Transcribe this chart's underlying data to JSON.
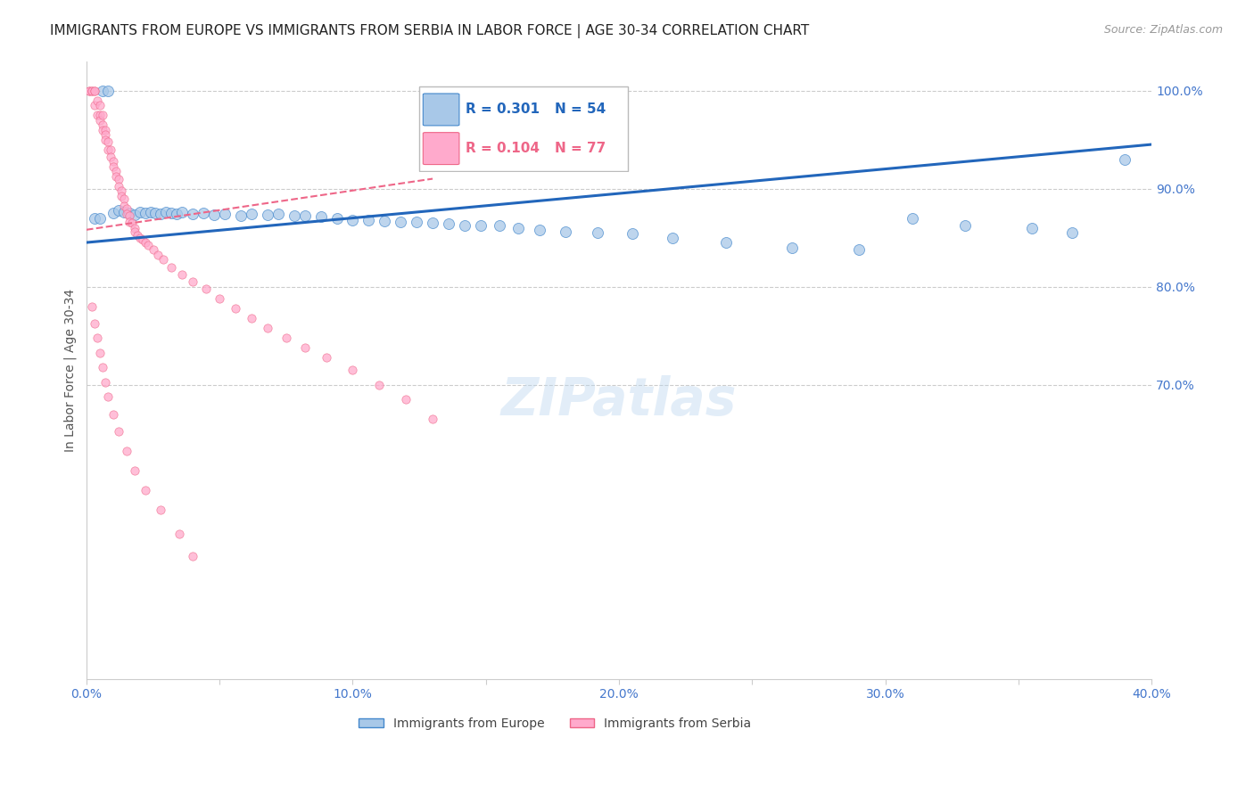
{
  "title": "IMMIGRANTS FROM EUROPE VS IMMIGRANTS FROM SERBIA IN LABOR FORCE | AGE 30-34 CORRELATION CHART",
  "source": "Source: ZipAtlas.com",
  "ylabel": "In Labor Force | Age 30-34",
  "xlim": [
    0.0,
    0.4
  ],
  "ylim": [
    0.4,
    1.03
  ],
  "xtick_vals": [
    0.0,
    0.05,
    0.1,
    0.15,
    0.2,
    0.25,
    0.3,
    0.35,
    0.4
  ],
  "xtick_labels": [
    "0.0%",
    "",
    "10.0%",
    "",
    "20.0%",
    "",
    "30.0%",
    "",
    "40.0%"
  ],
  "ytick_vals": [
    0.7,
    0.8,
    0.9,
    1.0
  ],
  "ytick_labels": [
    "70.0%",
    "80.0%",
    "90.0%",
    "100.0%"
  ],
  "blue_color": "#a8c8e8",
  "blue_edge_color": "#4488cc",
  "pink_color": "#ffaacc",
  "pink_edge_color": "#ee6688",
  "blue_line_color": "#2266bb",
  "pink_line_color": "#dd5577",
  "watermark": "ZIPatlas",
  "legend_blue_r": "R = 0.301",
  "legend_blue_n": "N = 54",
  "legend_pink_r": "R = 0.104",
  "legend_pink_n": "N = 77",
  "europe_x": [
    0.003,
    0.005,
    0.006,
    0.008,
    0.01,
    0.012,
    0.014,
    0.016,
    0.018,
    0.02,
    0.022,
    0.024,
    0.026,
    0.028,
    0.03,
    0.032,
    0.034,
    0.036,
    0.04,
    0.044,
    0.048,
    0.052,
    0.058,
    0.062,
    0.068,
    0.072,
    0.078,
    0.082,
    0.088,
    0.094,
    0.1,
    0.106,
    0.112,
    0.118,
    0.124,
    0.13,
    0.136,
    0.142,
    0.148,
    0.155,
    0.162,
    0.17,
    0.18,
    0.192,
    0.205,
    0.22,
    0.24,
    0.265,
    0.29,
    0.31,
    0.33,
    0.355,
    0.37,
    0.39
  ],
  "europe_y": [
    0.87,
    0.87,
    1.0,
    1.0,
    0.875,
    0.878,
    0.876,
    0.875,
    0.873,
    0.876,
    0.875,
    0.876,
    0.875,
    0.874,
    0.876,
    0.875,
    0.874,
    0.876,
    0.874,
    0.875,
    0.873,
    0.874,
    0.872,
    0.874,
    0.873,
    0.874,
    0.872,
    0.872,
    0.871,
    0.87,
    0.868,
    0.868,
    0.867,
    0.866,
    0.866,
    0.865,
    0.864,
    0.862,
    0.862,
    0.862,
    0.86,
    0.858,
    0.856,
    0.855,
    0.854,
    0.85,
    0.845,
    0.84,
    0.838,
    0.87,
    0.862,
    0.86,
    0.855,
    0.93
  ],
  "serbia_x": [
    0.001,
    0.001,
    0.002,
    0.002,
    0.003,
    0.003,
    0.003,
    0.004,
    0.004,
    0.005,
    0.005,
    0.005,
    0.006,
    0.006,
    0.006,
    0.007,
    0.007,
    0.007,
    0.008,
    0.008,
    0.009,
    0.009,
    0.01,
    0.01,
    0.011,
    0.011,
    0.012,
    0.012,
    0.013,
    0.013,
    0.014,
    0.014,
    0.015,
    0.015,
    0.016,
    0.016,
    0.017,
    0.018,
    0.018,
    0.019,
    0.02,
    0.021,
    0.022,
    0.023,
    0.025,
    0.027,
    0.029,
    0.032,
    0.036,
    0.04,
    0.045,
    0.05,
    0.056,
    0.062,
    0.068,
    0.075,
    0.082,
    0.09,
    0.1,
    0.11,
    0.12,
    0.13,
    0.002,
    0.003,
    0.004,
    0.005,
    0.006,
    0.007,
    0.008,
    0.01,
    0.012,
    0.015,
    0.018,
    0.022,
    0.028,
    0.035,
    0.04
  ],
  "serbia_y": [
    1.0,
    1.0,
    1.0,
    1.0,
    1.0,
    1.0,
    0.985,
    0.99,
    0.975,
    0.985,
    0.975,
    0.97,
    0.975,
    0.965,
    0.96,
    0.96,
    0.955,
    0.95,
    0.948,
    0.94,
    0.94,
    0.932,
    0.928,
    0.922,
    0.918,
    0.912,
    0.91,
    0.902,
    0.898,
    0.892,
    0.89,
    0.882,
    0.88,
    0.874,
    0.872,
    0.866,
    0.865,
    0.86,
    0.856,
    0.852,
    0.85,
    0.848,
    0.845,
    0.842,
    0.838,
    0.832,
    0.828,
    0.82,
    0.812,
    0.805,
    0.798,
    0.788,
    0.778,
    0.768,
    0.758,
    0.748,
    0.738,
    0.728,
    0.715,
    0.7,
    0.685,
    0.665,
    0.78,
    0.762,
    0.748,
    0.732,
    0.718,
    0.702,
    0.688,
    0.67,
    0.652,
    0.632,
    0.612,
    0.592,
    0.572,
    0.548,
    0.525
  ],
  "blue_trend_x": [
    0.0,
    0.4
  ],
  "blue_trend_y": [
    0.845,
    0.945
  ],
  "pink_trend_x": [
    0.0,
    0.13
  ],
  "pink_trend_y": [
    0.858,
    0.91
  ],
  "title_fontsize": 11,
  "tick_fontsize": 10,
  "ylabel_fontsize": 10,
  "source_fontsize": 9,
  "watermark_fontsize": 42,
  "scatter_size_europe": 75,
  "scatter_size_serbia": 45
}
